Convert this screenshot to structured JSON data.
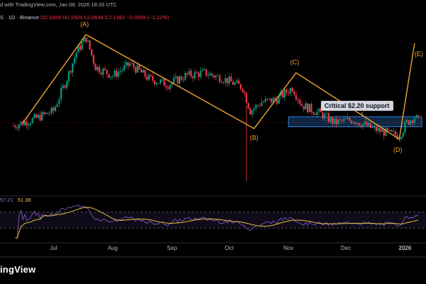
{
  "header": {
    "published_prefix": "d with TradingView.com,",
    "published_date": "Jan 08, 2026 18:33 UTC",
    "symbol": "S · 1D · Binance",
    "ohlc": {
      "open": "O2.1658",
      "high": "H2.1925",
      "low": "L2.0649",
      "close": "C2.1392",
      "change": "−0.0265 (−1.22%)"
    }
  },
  "rsi_legend": {
    "a": "57.21",
    "b": "51.38"
  },
  "brand": "ingView",
  "callout": "Critical $2.20 support",
  "wave_labels": [
    "(A)",
    "(B)",
    "(C)",
    "(D)",
    "(E)"
  ],
  "colors": {
    "up": "#089981",
    "down": "#f23645",
    "wave": "#f0a432",
    "rsi": "#7e57c2",
    "rsi_ma": "#d4b13c",
    "zone_fill": "#14345a",
    "zone_border": "#2f7cd6"
  },
  "chart_data": {
    "type": "candlestick",
    "x_ticks": [
      "Jul",
      "Aug",
      "Sep",
      "Oct",
      "Nov",
      "Dec",
      "2026"
    ],
    "wave_points": [
      {
        "label": "",
        "date": "2025-06-15",
        "price": 2.1
      },
      {
        "label": "(A)",
        "date": "2025-07-18",
        "price": 3.6
      },
      {
        "label": "(B)",
        "date": "2025-10-14",
        "price": 2.0
      },
      {
        "label": "(C)",
        "date": "2025-11-05",
        "price": 2.95
      },
      {
        "label": "(D)",
        "date": "2025-12-29",
        "price": 1.82
      },
      {
        "label": "(E)",
        "date": "2026-01-06",
        "price": 3.45
      }
    ],
    "support_zone": {
      "low": 2.03,
      "high": 2.2
    },
    "price_path": [
      {
        "date": "2025-06-10",
        "price": 2.05
      },
      {
        "date": "2025-06-20",
        "price": 2.15
      },
      {
        "date": "2025-07-01",
        "price": 2.3
      },
      {
        "date": "2025-07-08",
        "price": 2.85
      },
      {
        "date": "2025-07-13",
        "price": 3.3
      },
      {
        "date": "2025-07-18",
        "price": 3.55
      },
      {
        "date": "2025-07-23",
        "price": 3.05
      },
      {
        "date": "2025-08-01",
        "price": 2.9
      },
      {
        "date": "2025-08-10",
        "price": 3.1
      },
      {
        "date": "2025-08-20",
        "price": 2.85
      },
      {
        "date": "2025-08-30",
        "price": 2.75
      },
      {
        "date": "2025-09-08",
        "price": 2.9
      },
      {
        "date": "2025-09-18",
        "price": 2.95
      },
      {
        "date": "2025-09-28",
        "price": 2.85
      },
      {
        "date": "2025-10-08",
        "price": 2.7
      },
      {
        "date": "2025-10-12",
        "price": 2.3
      },
      {
        "date": "2025-10-18",
        "price": 2.45
      },
      {
        "date": "2025-10-26",
        "price": 2.5
      },
      {
        "date": "2025-11-03",
        "price": 2.7
      },
      {
        "date": "2025-11-08",
        "price": 2.4
      },
      {
        "date": "2025-11-18",
        "price": 2.25
      },
      {
        "date": "2025-11-25",
        "price": 2.1
      },
      {
        "date": "2025-12-05",
        "price": 2.15
      },
      {
        "date": "2025-12-15",
        "price": 2.0
      },
      {
        "date": "2025-12-25",
        "price": 1.9
      },
      {
        "date": "2025-12-29",
        "price": 1.88
      },
      {
        "date": "2026-01-02",
        "price": 2.1
      },
      {
        "date": "2026-01-06",
        "price": 2.2
      },
      {
        "date": "2026-01-08",
        "price": 2.14
      }
    ],
    "wick_spike": {
      "date": "2025-10-10",
      "low": 1.1,
      "high": 2.4
    },
    "rsi_levels": [
      70,
      30
    ]
  }
}
